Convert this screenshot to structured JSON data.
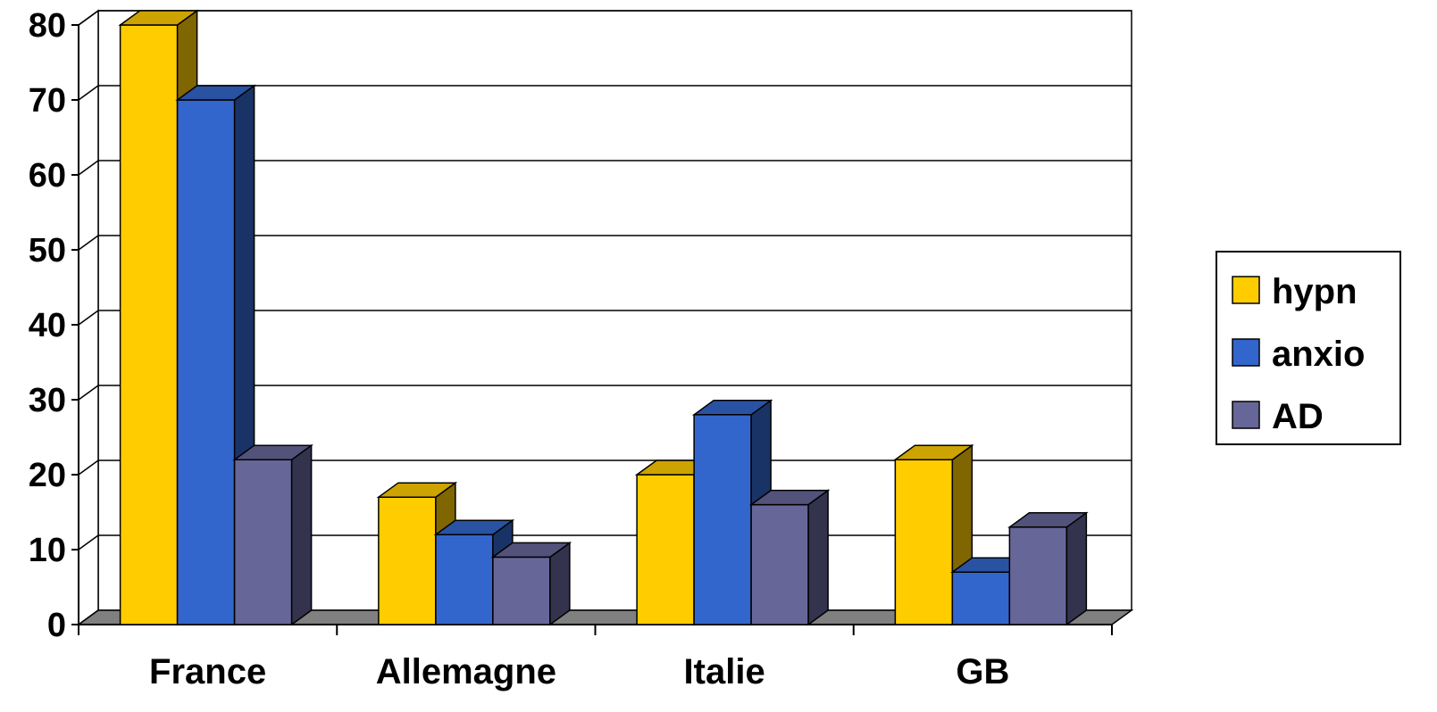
{
  "chart_data": {
    "type": "bar",
    "categories": [
      "France",
      "Allemagne",
      "Italie",
      "GB"
    ],
    "series": [
      {
        "name": "hypn",
        "values": [
          80,
          17,
          20,
          22
        ],
        "color": "#FFCC00",
        "side_color": "#806600",
        "top_color": "#CCA300"
      },
      {
        "name": "anxio",
        "values": [
          70,
          12,
          28,
          7
        ],
        "color": "#3366CC",
        "side_color": "#1A3366",
        "top_color": "#2952A3"
      },
      {
        "name": "AD",
        "values": [
          22,
          9,
          16,
          13
        ],
        "color": "#666699",
        "side_color": "#33334D",
        "top_color": "#52527A"
      }
    ],
    "ylim": [
      0,
      80
    ],
    "yticks": [
      "0",
      "10",
      "20",
      "30",
      "40",
      "50",
      "60",
      "70",
      "80"
    ],
    "grid": true,
    "legend_position": "right",
    "floor_color": "#808080",
    "wall_color": "#ffffff"
  }
}
